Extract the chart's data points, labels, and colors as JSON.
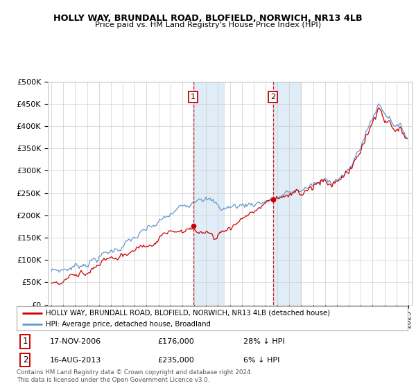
{
  "title": "HOLLY WAY, BRUNDALL ROAD, BLOFIELD, NORWICH, NR13 4LB",
  "subtitle": "Price paid vs. HM Land Registry's House Price Index (HPI)",
  "legend_line1": "HOLLY WAY, BRUNDALL ROAD, BLOFIELD, NORWICH, NR13 4LB (detached house)",
  "legend_line2": "HPI: Average price, detached house, Broadland",
  "transaction1_date": "17-NOV-2006",
  "transaction1_price": "£176,000",
  "transaction1_hpi": "28% ↓ HPI",
  "transaction2_date": "16-AUG-2013",
  "transaction2_price": "£235,000",
  "transaction2_hpi": "6% ↓ HPI",
  "footer": "Contains HM Land Registry data © Crown copyright and database right 2024.\nThis data is licensed under the Open Government Licence v3.0.",
  "price_color": "#cc0000",
  "hpi_color": "#6699cc",
  "ylim": [
    0,
    500000
  ],
  "yticks": [
    0,
    50000,
    100000,
    150000,
    200000,
    250000,
    300000,
    350000,
    400000,
    450000,
    500000
  ],
  "transaction1_x": 2006.917,
  "transaction2_x": 2013.625,
  "marker1_y": 176000,
  "marker2_y": 235000,
  "shade1_x_start": 2006.917,
  "shade1_x_end": 2009.5,
  "shade2_x_start": 2013.625,
  "shade2_x_end": 2016.0,
  "xlim_left": 1994.7,
  "xlim_right": 2025.3
}
